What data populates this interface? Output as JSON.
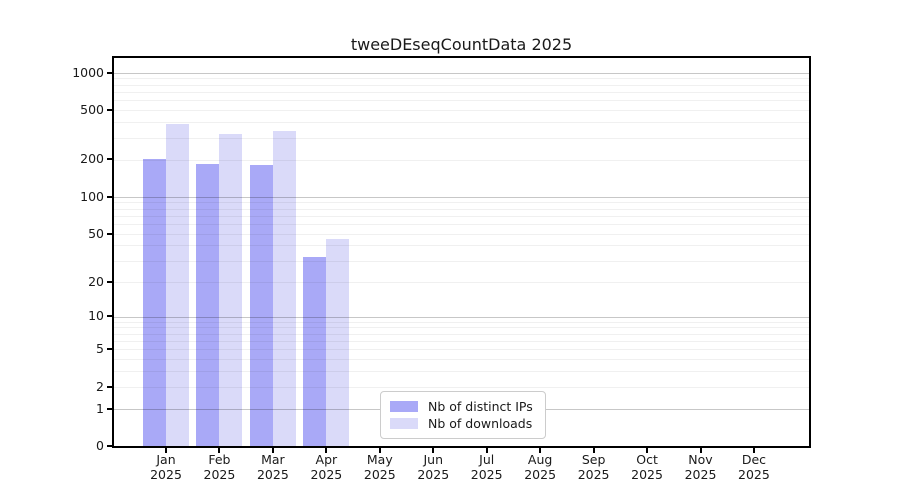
{
  "title": "tweeDEseqCountData 2025",
  "colors": {
    "ips_bar": "#a9a9f7",
    "downloads_bar": "#dadaf9",
    "grid_minor": "rgba(0,0,0,0.06)",
    "grid_major": "rgba(0,0,0,0.22)",
    "axis": "#000000",
    "text": "#1a1a1a",
    "legend_border": "#cccccc"
  },
  "chart_data": {
    "type": "bar",
    "title": "tweeDEseqCountData 2025",
    "y_scale": "log1p",
    "categories": [
      "Jan 2025",
      "Feb 2025",
      "Mar 2025",
      "Apr 2025",
      "May 2025",
      "Jun 2025",
      "Jul 2025",
      "Aug 2025",
      "Sep 2025",
      "Oct 2025",
      "Nov 2025",
      "Dec 2025"
    ],
    "series": [
      {
        "name": "Nb of distinct IPs",
        "color_key": "ips_bar",
        "values": [
          200,
          185,
          180,
          32,
          0,
          0,
          0,
          0,
          0,
          0,
          0,
          0
        ]
      },
      {
        "name": "Nb of downloads",
        "color_key": "downloads_bar",
        "values": [
          390,
          320,
          340,
          45,
          0,
          0,
          0,
          0,
          0,
          0,
          0,
          0
        ]
      }
    ],
    "yticks": [
      0,
      1,
      2,
      5,
      10,
      20,
      50,
      100,
      200,
      500,
      1000
    ],
    "ylim": [
      0,
      1270
    ],
    "xlabel": "",
    "ylabel": "",
    "grid": true,
    "grid_minor_values": [
      2,
      3,
      4,
      5,
      6,
      7,
      8,
      9,
      20,
      30,
      40,
      50,
      60,
      70,
      80,
      90,
      200,
      300,
      400,
      500,
      600,
      700,
      800,
      900
    ],
    "grid_major_values": [
      1,
      10,
      100,
      1000
    ],
    "legend_position": "inside-bottom-center"
  },
  "legend": {
    "items": [
      {
        "label": "Nb of distinct IPs",
        "color_key": "ips_bar"
      },
      {
        "label": "Nb of downloads",
        "color_key": "downloads_bar"
      }
    ]
  }
}
